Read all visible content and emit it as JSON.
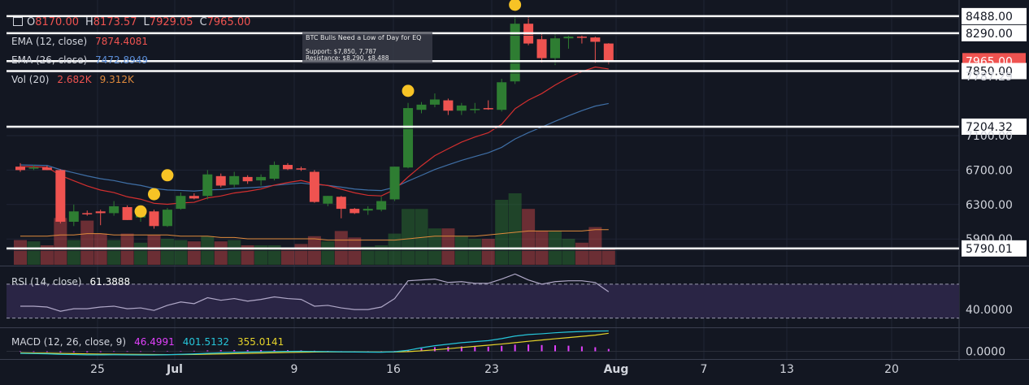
{
  "header": {
    "open_label": "O",
    "open": "8170.00",
    "high_label": "H",
    "high": "8173.57",
    "low_label": "L",
    "low": "7929.05",
    "close_label": "C",
    "close": "7965.00"
  },
  "indicators": {
    "ema12_label": "EMA (12, close)",
    "ema12_value": "7874.4081",
    "ema26_label": "EMA (26, close)",
    "ema26_value": "7472.8949",
    "vol_label": "Vol (20)",
    "vol_value_1": "2.682K",
    "vol_value_2": "9.312K",
    "rsi_label": "RSI (14, close)",
    "rsi_value": "61.3888",
    "macd_label": "MACD (12, 26, close, 9)",
    "macd_hist": "46.4991",
    "macd_line": "401.5132",
    "macd_signal": "355.0141"
  },
  "annotation": {
    "title": "BTC Bulls Need a Low of Day for EQ",
    "support": "Support: $7,850, 7,787",
    "resistance": "Resistance: $8,290, $8,488"
  },
  "colors": {
    "background": "#131722",
    "up": "#2e7d32",
    "down": "#ef5350",
    "ema12": "#d32f2f",
    "ema26": "#3f6fa6",
    "volume_ma": "#e08a3c",
    "rsi_line": "#b0a8c8",
    "rsi_band": "#2a2545",
    "marker": "#f7c325",
    "macd": "#26c6da",
    "signal": "#e5d32a",
    "hist": "#e040fb"
  },
  "chart_data": [
    {
      "type": "candlestick",
      "title": "",
      "ylim": [
        5600,
        8600
      ],
      "y_ticks": [
        "8488.00",
        "8290.00",
        "7965.00",
        "7850.00",
        "7787.29",
        "7204.32",
        "7100.00",
        "6700.00",
        "6300.00",
        "5900.00",
        "5790.01"
      ],
      "x_ticks": [
        "25",
        "Jul",
        "9",
        "16",
        "23",
        "Aug",
        "7",
        "13",
        "20"
      ],
      "horizontal_levels": [
        8488,
        8290,
        7965,
        7850,
        7204.32,
        5790.01
      ],
      "current_price": 7965.0,
      "candles": [
        {
          "o": 6740,
          "h": 6780,
          "l": 6680,
          "c": 6700
        },
        {
          "o": 6720,
          "h": 6760,
          "l": 6700,
          "c": 6730
        },
        {
          "o": 6730,
          "h": 6750,
          "l": 6700,
          "c": 6700
        },
        {
          "o": 6700,
          "h": 6710,
          "l": 6080,
          "c": 6100
        },
        {
          "o": 6100,
          "h": 6300,
          "l": 6050,
          "c": 6220
        },
        {
          "o": 6200,
          "h": 6230,
          "l": 6170,
          "c": 6190
        },
        {
          "o": 6220,
          "h": 6240,
          "l": 6060,
          "c": 6200
        },
        {
          "o": 6200,
          "h": 6340,
          "l": 6170,
          "c": 6280
        },
        {
          "o": 6270,
          "h": 6290,
          "l": 6120,
          "c": 6120
        },
        {
          "o": 6150,
          "h": 6250,
          "l": 6100,
          "c": 6210
        },
        {
          "o": 6220,
          "h": 6240,
          "l": 6020,
          "c": 6050
        },
        {
          "o": 6050,
          "h": 6260,
          "l": 6040,
          "c": 6240
        },
        {
          "o": 6250,
          "h": 6440,
          "l": 6240,
          "c": 6400
        },
        {
          "o": 6400,
          "h": 6430,
          "l": 6360,
          "c": 6370
        },
        {
          "o": 6400,
          "h": 6700,
          "l": 6360,
          "c": 6650
        },
        {
          "o": 6630,
          "h": 6660,
          "l": 6500,
          "c": 6520
        },
        {
          "o": 6530,
          "h": 6680,
          "l": 6500,
          "c": 6630
        },
        {
          "o": 6620,
          "h": 6640,
          "l": 6540,
          "c": 6570
        },
        {
          "o": 6580,
          "h": 6650,
          "l": 6520,
          "c": 6620
        },
        {
          "o": 6600,
          "h": 6800,
          "l": 6580,
          "c": 6760
        },
        {
          "o": 6760,
          "h": 6780,
          "l": 6700,
          "c": 6710
        },
        {
          "o": 6720,
          "h": 6740,
          "l": 6690,
          "c": 6710
        },
        {
          "o": 6680,
          "h": 6700,
          "l": 6320,
          "c": 6330
        },
        {
          "o": 6310,
          "h": 6400,
          "l": 6280,
          "c": 6400
        },
        {
          "o": 6390,
          "h": 6400,
          "l": 6140,
          "c": 6250
        },
        {
          "o": 6250,
          "h": 6260,
          "l": 6190,
          "c": 6200
        },
        {
          "o": 6230,
          "h": 6280,
          "l": 6180,
          "c": 6250
        },
        {
          "o": 6240,
          "h": 6390,
          "l": 6220,
          "c": 6340
        },
        {
          "o": 6360,
          "h": 6740,
          "l": 6340,
          "c": 6740
        },
        {
          "o": 6730,
          "h": 7480,
          "l": 6720,
          "c": 7420
        },
        {
          "o": 7400,
          "h": 7490,
          "l": 7360,
          "c": 7460
        },
        {
          "o": 7460,
          "h": 7590,
          "l": 7430,
          "c": 7520
        },
        {
          "o": 7510,
          "h": 7530,
          "l": 7340,
          "c": 7390
        },
        {
          "o": 7390,
          "h": 7480,
          "l": 7340,
          "c": 7450
        },
        {
          "o": 7400,
          "h": 7480,
          "l": 7360,
          "c": 7410
        },
        {
          "o": 7420,
          "h": 7510,
          "l": 7400,
          "c": 7410
        },
        {
          "o": 7400,
          "h": 7760,
          "l": 7380,
          "c": 7720
        },
        {
          "o": 7730,
          "h": 8480,
          "l": 7700,
          "c": 8400
        },
        {
          "o": 8400,
          "h": 8488,
          "l": 8150,
          "c": 8170
        },
        {
          "o": 8220,
          "h": 8290,
          "l": 7950,
          "c": 8000
        },
        {
          "o": 8000,
          "h": 8300,
          "l": 7920,
          "c": 8230
        },
        {
          "o": 8230,
          "h": 8260,
          "l": 8110,
          "c": 8250
        },
        {
          "o": 8250,
          "h": 8270,
          "l": 8170,
          "c": 8240
        },
        {
          "o": 8240,
          "h": 8250,
          "l": 7940,
          "c": 8190
        },
        {
          "o": 8170,
          "h": 8174,
          "l": 7929,
          "c": 7965
        }
      ],
      "ema12": [
        6740,
        6738,
        6733,
        6638,
        6576,
        6516,
        6468,
        6439,
        6390,
        6362,
        6314,
        6303,
        6318,
        6326,
        6377,
        6399,
        6434,
        6454,
        6480,
        6525,
        6555,
        6580,
        6542,
        6520,
        6478,
        6436,
        6407,
        6400,
        6475,
        6620,
        6750,
        6868,
        6948,
        7025,
        7084,
        7133,
        7232,
        7412,
        7513,
        7589,
        7687,
        7773,
        7844,
        7897,
        7874
      ],
      "ema26": [
        6760,
        6757,
        6753,
        6705,
        6669,
        6632,
        6600,
        6578,
        6546,
        6522,
        6487,
        6469,
        6464,
        6456,
        6470,
        6474,
        6488,
        6494,
        6503,
        6523,
        6537,
        6550,
        6532,
        6523,
        6502,
        6480,
        6468,
        6462,
        6500,
        6572,
        6639,
        6707,
        6761,
        6813,
        6858,
        6901,
        6964,
        7061,
        7135,
        7199,
        7267,
        7331,
        7391,
        7443,
        7473
      ],
      "volume": [
        1.9,
        1.8,
        1.5,
        3.6,
        1.9,
        3.4,
        2.4,
        1.9,
        2.4,
        1.7,
        2.3,
        2.0,
        1.9,
        1.8,
        2.2,
        1.8,
        1.9,
        1.5,
        1.5,
        1.5,
        1.3,
        1.6,
        2.2,
        1.8,
        2.6,
        2.1,
        1.4,
        1.5,
        2.4,
        4.3,
        4.3,
        2.8,
        2.8,
        2.2,
        2.0,
        2.0,
        5.0,
        5.5,
        4.3,
        2.6,
        2.6,
        2.0,
        1.7,
        2.9,
        1.3
      ],
      "volume_ma": [
        2.2,
        2.2,
        2.2,
        2.3,
        2.3,
        2.4,
        2.4,
        2.3,
        2.3,
        2.3,
        2.3,
        2.3,
        2.2,
        2.2,
        2.2,
        2.1,
        2.1,
        2.0,
        2.0,
        2.0,
        2.0,
        2.0,
        2.0,
        1.9,
        1.9,
        1.9,
        1.9,
        1.9,
        1.9,
        2.0,
        2.1,
        2.2,
        2.2,
        2.2,
        2.2,
        2.3,
        2.4,
        2.5,
        2.6,
        2.6,
        2.6,
        2.6,
        2.6,
        2.7,
        2.7
      ],
      "markers": [
        {
          "index": 9,
          "price": 6220
        },
        {
          "index": 10,
          "price": 6420
        },
        {
          "index": 11,
          "price": 6640
        },
        {
          "index": 29,
          "price": 7620
        },
        {
          "index": 37,
          "price": 8620
        }
      ]
    },
    {
      "type": "line",
      "title": "",
      "ylim": [
        20,
        90
      ],
      "y_ticks": [
        "40.0000"
      ],
      "bands": [
        30,
        70
      ],
      "values": [
        44,
        44,
        43,
        38,
        41,
        41,
        43,
        44,
        41,
        42,
        39,
        45,
        49,
        47,
        54,
        51,
        53,
        50,
        52,
        55,
        53,
        52,
        44,
        45,
        42,
        40,
        40,
        43,
        53,
        74,
        75,
        76,
        72,
        73,
        71,
        71,
        76,
        82,
        75,
        70,
        73,
        74,
        74,
        72,
        61
      ]
    },
    {
      "type": "line",
      "title": "",
      "ylim": [
        -120,
        440
      ],
      "y_ticks": [
        "0.0000"
      ],
      "series": [
        {
          "values": [
            -40,
            -45,
            -50,
            -60,
            -65,
            -70,
            -70,
            -68,
            -70,
            -72,
            -72,
            -68,
            -60,
            -52,
            -40,
            -30,
            -22,
            -16,
            -10,
            -5,
            -2,
            0,
            -4,
            -6,
            -10,
            -14,
            -16,
            -18,
            -8,
            20,
            70,
            110,
            140,
            170,
            190,
            210,
            250,
            300,
            330,
            345,
            365,
            380,
            390,
            398,
            401
          ]
        },
        {
          "values": [
            -30,
            -33,
            -36,
            -41,
            -46,
            -51,
            -55,
            -58,
            -60,
            -62,
            -64,
            -65,
            -64,
            -62,
            -57,
            -52,
            -46,
            -40,
            -34,
            -28,
            -23,
            -18,
            -15,
            -13,
            -12,
            -12,
            -13,
            -14,
            -13,
            -6,
            9,
            29,
            51,
            75,
            98,
            120,
            143,
            170,
            197,
            222,
            247,
            270,
            294,
            318,
            355
          ]
        },
        {
          "values": [
            -10,
            -12,
            -14,
            -19,
            -19,
            -19,
            -15,
            -10,
            -10,
            -10,
            -8,
            -3,
            4,
            10,
            17,
            22,
            24,
            24,
            24,
            23,
            21,
            18,
            11,
            7,
            2,
            -2,
            -3,
            -4,
            5,
            26,
            61,
            81,
            89,
            95,
            92,
            90,
            107,
            130,
            133,
            123,
            118,
            110,
            96,
            80,
            46
          ]
        }
      ]
    }
  ]
}
